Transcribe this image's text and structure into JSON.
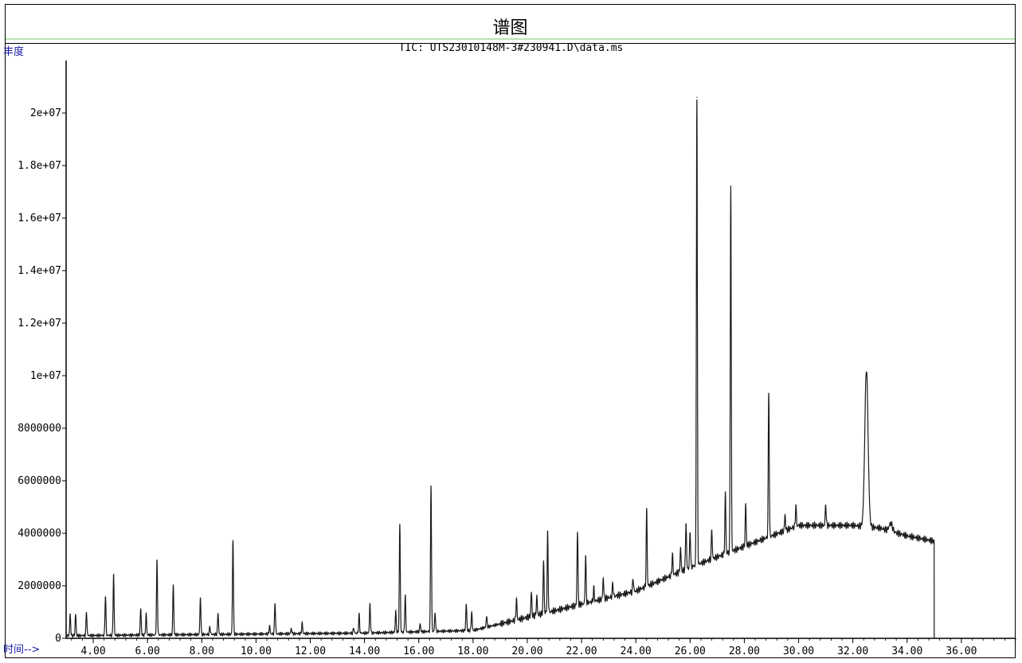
{
  "header": {
    "title": "谱图",
    "tic": "TIC: UTS23010148M-3#230941.D\\data.ms"
  },
  "colors": {
    "trace": "#1a1a1a",
    "axis_label": "#1a1aa6",
    "separator": "#b7e4b2"
  },
  "chart_data": {
    "type": "line",
    "title": "TIC: UTS23010148M-3#230941.D\\data.ms",
    "xlabel": "时间-->",
    "ylabel": "丰度",
    "xlim": [
      3.0,
      38.0
    ],
    "ylim": [
      0,
      22000000
    ],
    "grid": false,
    "legend": "none",
    "x_ticks": [
      "4.00",
      "6.00",
      "8.00",
      "10.00",
      "12.00",
      "14.00",
      "16.00",
      "18.00",
      "20.00",
      "22.00",
      "24.00",
      "26.00",
      "28.00",
      "30.00",
      "32.00",
      "34.00",
      "36.00"
    ],
    "x_tick_values": [
      4,
      6,
      8,
      10,
      12,
      14,
      16,
      18,
      20,
      22,
      24,
      26,
      28,
      30,
      32,
      34,
      36
    ],
    "y_ticks": [
      "0",
      "2000000",
      "4000000",
      "6000000",
      "8000000",
      "1e+07",
      "1.2e+07",
      "1.4e+07",
      "1.6e+07",
      "1.8e+07",
      "2e+07"
    ],
    "y_tick_values": [
      0,
      2000000,
      4000000,
      6000000,
      8000000,
      10000000,
      12000000,
      14000000,
      16000000,
      18000000,
      20000000
    ],
    "trace_end": 35.0,
    "baseline": [
      [
        3.0,
        100000
      ],
      [
        14.0,
        200000
      ],
      [
        18.0,
        300000
      ],
      [
        20.0,
        800000
      ],
      [
        22.0,
        1300000
      ],
      [
        24.0,
        1800000
      ],
      [
        26.0,
        2700000
      ],
      [
        28.0,
        3500000
      ],
      [
        30.0,
        4300000
      ],
      [
        32.0,
        4300000
      ],
      [
        33.0,
        4200000
      ],
      [
        34.0,
        3900000
      ],
      [
        35.0,
        3700000
      ]
    ],
    "peaks": [
      [
        3.15,
        800000
      ],
      [
        3.35,
        800000
      ],
      [
        3.75,
        900000
      ],
      [
        4.45,
        1500000
      ],
      [
        4.75,
        2300000
      ],
      [
        5.75,
        1000000
      ],
      [
        5.95,
        800000
      ],
      [
        6.35,
        2800000
      ],
      [
        6.95,
        1900000
      ],
      [
        7.95,
        1400000
      ],
      [
        8.3,
        300000
      ],
      [
        8.6,
        800000
      ],
      [
        9.15,
        3600000
      ],
      [
        10.5,
        300000
      ],
      [
        10.7,
        1200000
      ],
      [
        11.3,
        200000
      ],
      [
        11.7,
        400000
      ],
      [
        13.6,
        200000
      ],
      [
        13.8,
        700000
      ],
      [
        14.2,
        1100000
      ],
      [
        15.15,
        800000
      ],
      [
        15.3,
        4100000
      ],
      [
        15.5,
        1400000
      ],
      [
        16.05,
        300000
      ],
      [
        16.45,
        5600000
      ],
      [
        16.6,
        700000
      ],
      [
        17.75,
        1000000
      ],
      [
        17.95,
        700000
      ],
      [
        18.5,
        400000
      ],
      [
        19.6,
        800000
      ],
      [
        20.15,
        900000
      ],
      [
        20.35,
        700000
      ],
      [
        20.6,
        2000000
      ],
      [
        20.75,
        3000000
      ],
      [
        21.85,
        2800000
      ],
      [
        22.15,
        1800000
      ],
      [
        22.45,
        500000
      ],
      [
        22.8,
        800000
      ],
      [
        23.15,
        500000
      ],
      [
        23.9,
        500000
      ],
      [
        24.4,
        2900000
      ],
      [
        25.35,
        800000
      ],
      [
        25.65,
        900000
      ],
      [
        25.85,
        1800000
      ],
      [
        26.0,
        1400000
      ],
      [
        26.25,
        17800000
      ],
      [
        26.8,
        1100000
      ],
      [
        27.3,
        2300000
      ],
      [
        27.5,
        14000000
      ],
      [
        28.05,
        1600000
      ],
      [
        28.9,
        5500000
      ],
      [
        29.5,
        600000
      ],
      [
        29.9,
        800000
      ],
      [
        31.0,
        800000
      ],
      [
        32.5,
        6000000
      ],
      [
        33.4,
        300000
      ]
    ]
  }
}
